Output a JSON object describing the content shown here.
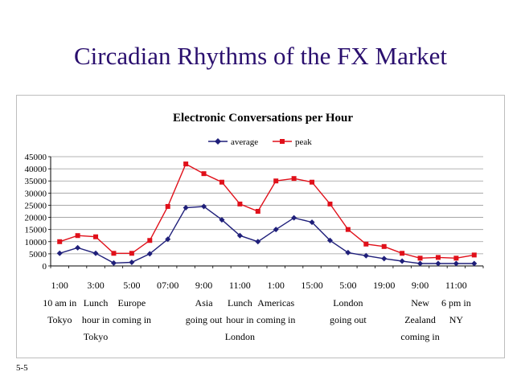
{
  "slide": {
    "title": "Circadian Rhythms of the FX Market",
    "number": "5-5"
  },
  "chart_data": {
    "type": "line",
    "title": "Electronic Conversations per Hour",
    "xlabel": "",
    "ylabel": "",
    "ylim": [
      0,
      45000
    ],
    "yticks": [
      0,
      5000,
      10000,
      15000,
      20000,
      25000,
      30000,
      35000,
      40000,
      45000
    ],
    "legend_position": "top-center",
    "grid": true,
    "colors": {
      "average": "#1f1f7a",
      "peak": "#e0101a"
    },
    "x_tick_labels": [
      "1:00",
      "3:00",
      "5:00",
      "07:00",
      "9:00",
      "11:00",
      "1:00",
      "15:00",
      "5:00",
      "19:00",
      "9:00",
      "11:00"
    ],
    "annotations": [
      {
        "x_index": 0,
        "lines": [
          "10 am in",
          "Tokyo"
        ]
      },
      {
        "x_index": 2,
        "lines": [
          "Lunch",
          "hour in",
          "Tokyo"
        ]
      },
      {
        "x_index": 4,
        "lines": [
          "Europe",
          "coming in"
        ]
      },
      {
        "x_index": 8,
        "lines": [
          "Asia",
          "going out"
        ]
      },
      {
        "x_index": 10,
        "lines": [
          "Lunch",
          "hour in",
          "London"
        ]
      },
      {
        "x_index": 12,
        "lines": [
          "Americas",
          "coming in"
        ]
      },
      {
        "x_index": 16,
        "lines": [
          "London",
          "going out"
        ]
      },
      {
        "x_index": 20,
        "lines": [
          "New",
          "Zealand",
          "coming in"
        ]
      },
      {
        "x_index": 22,
        "lines": [
          "6 pm in",
          "NY"
        ]
      }
    ],
    "series": [
      {
        "name": "average",
        "values": [
          5200,
          7500,
          5200,
          1200,
          1500,
          5000,
          11000,
          24000,
          24500,
          19000,
          12500,
          10000,
          15000,
          19800,
          18000,
          10500,
          5500,
          4200,
          3000,
          2000,
          1000,
          1000,
          1000,
          1000
        ]
      },
      {
        "name": "peak",
        "values": [
          10000,
          12500,
          12000,
          5200,
          5200,
          10500,
          24500,
          42000,
          38000,
          34500,
          25500,
          22500,
          35000,
          36000,
          34500,
          25500,
          15000,
          9000,
          8000,
          5200,
          3200,
          3500,
          3200,
          4500
        ]
      }
    ]
  }
}
